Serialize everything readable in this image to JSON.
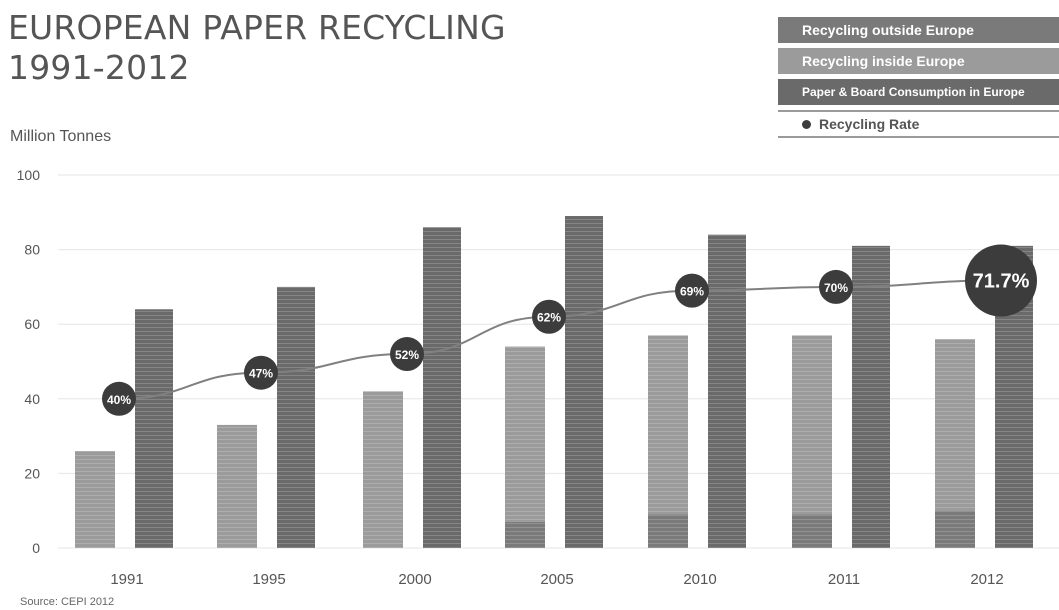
{
  "header": {
    "title_line1": "EUROPEAN PAPER RECYCLING",
    "title_line2": "1991-2012",
    "unit": "Million Tonnes"
  },
  "legend": {
    "items": [
      {
        "label": "Recycling outside Europe",
        "color": "#7a7a7a"
      },
      {
        "label": "Recycling inside Europe",
        "color": "#9b9b9b"
      },
      {
        "label": "Paper & Board Consumption in Europe",
        "color": "#6a6a6a"
      },
      {
        "label": "Recycling Rate",
        "color": "#3c3c3c"
      }
    ]
  },
  "source": "Source: CEPI 2012",
  "chart_data": {
    "type": "bar",
    "categories": [
      "1991",
      "1995",
      "2000",
      "2005",
      "2010",
      "2011",
      "2012"
    ],
    "series": [
      {
        "name": "Recycling outside Europe",
        "values": [
          0,
          0,
          0,
          7,
          9,
          9,
          10
        ]
      },
      {
        "name": "Recycling inside Europe",
        "values": [
          26,
          33,
          42,
          47,
          48,
          48,
          46
        ]
      },
      {
        "name": "Paper & Board Consumption in Europe",
        "values": [
          64,
          70,
          86,
          89,
          84,
          81,
          81
        ]
      },
      {
        "name": "Recycling Rate",
        "values": [
          40,
          47,
          52,
          62,
          69,
          70,
          71.7
        ],
        "labels": [
          "40%",
          "47%",
          "52%",
          "62%",
          "69%",
          "70%",
          "71.7%"
        ]
      }
    ],
    "yticks": [
      0,
      20,
      40,
      60,
      80,
      100
    ],
    "ylim": [
      0,
      100
    ],
    "grid": true,
    "legend_position": "top-right",
    "colors": {
      "outside": "#7a7a7a",
      "inside": "#9b9b9b",
      "consumption": "#6a6a6a",
      "rate": "#3c3c3c",
      "line": "#808080",
      "grid": "#e6e6e6"
    }
  }
}
